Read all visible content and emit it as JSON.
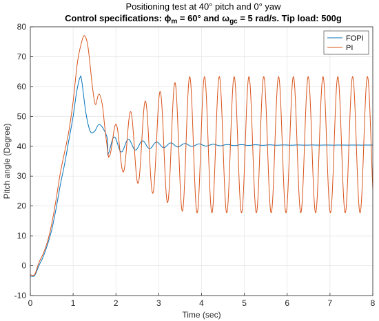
{
  "chart_data": {
    "type": "line",
    "title_line1": "Positioning test at 40° pitch and 0° yaw",
    "title_line2": {
      "part1": "Control specifications: ϕ",
      "sub1": "m",
      "part2": " = 60° and ω",
      "sub2": "gc",
      "part3": " = 5 rad/s. Tip load: 500g"
    },
    "xlabel": "Time (sec)",
    "ylabel": "Pitch angle (Degree)",
    "xlim": [
      0,
      8
    ],
    "ylim": [
      -10,
      80
    ],
    "xticks": [
      0,
      1,
      2,
      3,
      4,
      5,
      6,
      7,
      8
    ],
    "yticks": [
      -10,
      0,
      10,
      20,
      30,
      40,
      50,
      60,
      70,
      80
    ],
    "grid": true,
    "legend_position": "top-right",
    "series": [
      {
        "name": "FOPI",
        "color": "#0072BD",
        "model": {
          "points": [
            [
              0,
              -3.5
            ],
            [
              0.1,
              -3.3
            ],
            [
              0.2,
              0
            ],
            [
              0.3,
              3
            ],
            [
              0.4,
              7
            ],
            [
              0.5,
              12
            ],
            [
              0.6,
              19
            ],
            [
              0.7,
              27
            ],
            [
              0.8,
              34
            ],
            [
              0.9,
              42
            ],
            [
              1.0,
              50
            ],
            [
              1.08,
              58
            ],
            [
              1.16,
              63
            ],
            [
              1.2,
              62
            ],
            [
              1.3,
              51
            ],
            [
              1.4,
              45
            ],
            [
              1.5,
              45
            ],
            [
              1.6,
              47.3
            ],
            [
              1.7,
              46
            ],
            [
              1.8,
              42.5
            ]
          ],
          "after": {
            "t0": 1.8,
            "end": 8.0,
            "final": 40.4,
            "amp": 3.2,
            "period": 0.33,
            "decay": 1.0
          }
        }
      },
      {
        "name": "PI",
        "color": "#D95319",
        "model": {
          "points": [
            [
              0,
              -3
            ],
            [
              0.1,
              -3
            ],
            [
              0.2,
              1
            ],
            [
              0.3,
              4
            ],
            [
              0.4,
              8
            ],
            [
              0.5,
              14
            ],
            [
              0.6,
              22
            ],
            [
              0.7,
              31
            ],
            [
              0.8,
              38
            ],
            [
              0.9,
              45
            ],
            [
              1.0,
              55
            ],
            [
              1.1,
              68
            ],
            [
              1.2,
              75
            ],
            [
              1.27,
              77
            ],
            [
              1.35,
              73
            ],
            [
              1.45,
              60
            ],
            [
              1.52,
              54
            ],
            [
              1.6,
              57.5
            ],
            [
              1.68,
              54
            ],
            [
              1.75,
              45
            ],
            [
              1.82,
              37
            ]
          ],
          "after": {
            "t0": 1.82,
            "end": 8.0,
            "center": 40.5,
            "amp0": 3.5,
            "ampmax": 22.8,
            "tgrow": 1.8,
            "period": 0.346,
            "phase_start": -1
          }
        }
      }
    ]
  }
}
